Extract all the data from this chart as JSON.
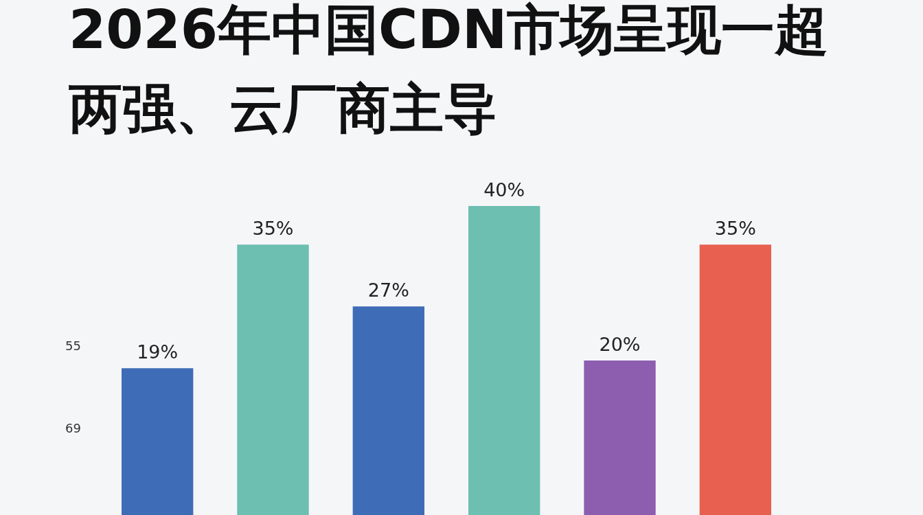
{
  "chart_data": {
    "type": "bar",
    "title": "2026年中国CDN市场呈现一超两强、云厂商主导",
    "categories": [
      null,
      null,
      null,
      null,
      null,
      null
    ],
    "values": [
      19,
      35,
      27,
      40,
      20,
      35
    ],
    "colors": [
      "#3f6cb6",
      "#6cbfb1",
      "#3f6cb6",
      "#6cbfb1",
      "#8d5eb0",
      "#e8604f"
    ],
    "value_labels": [
      "19%",
      "35%",
      "27%",
      "40%",
      "20%",
      "35%"
    ],
    "annotations": [
      "55",
      "69"
    ]
  }
}
